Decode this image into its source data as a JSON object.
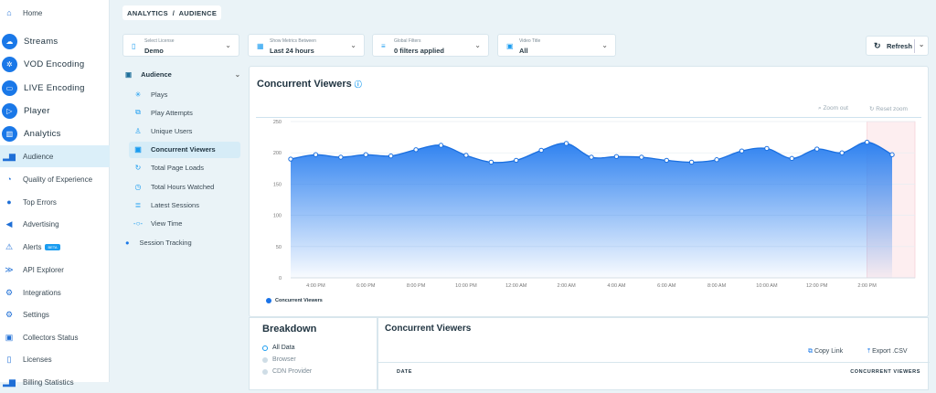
{
  "sidebar": {
    "items": [
      {
        "label": "Home",
        "icon": "home-icon",
        "big": false
      },
      {
        "label": "Streams",
        "icon": "cloud-icon",
        "big": true
      },
      {
        "label": "VOD Encoding",
        "icon": "network-icon",
        "big": true
      },
      {
        "label": "LIVE Encoding",
        "icon": "live-icon",
        "big": true
      },
      {
        "label": "Player",
        "icon": "play-icon",
        "big": true
      },
      {
        "label": "Analytics",
        "icon": "analytics-icon",
        "big": true
      },
      {
        "label": "Audience",
        "icon": "bar-chart-icon",
        "active": true
      },
      {
        "label": "Quality of Experience",
        "icon": "gauge-icon"
      },
      {
        "label": "Top Errors",
        "icon": "error-icon"
      },
      {
        "label": "Advertising",
        "icon": "megaphone-icon"
      },
      {
        "label": "Alerts",
        "icon": "alarm-icon",
        "badge": "BETA"
      },
      {
        "label": "API Explorer",
        "icon": "code-icon"
      },
      {
        "label": "Integrations",
        "icon": "integrations-icon"
      },
      {
        "label": "Settings",
        "icon": "gear-icon"
      },
      {
        "label": "Collectors Status",
        "icon": "collector-icon"
      },
      {
        "label": "Licenses",
        "icon": "license-icon"
      },
      {
        "label": "Billing Statistics",
        "icon": "billing-icon"
      }
    ]
  },
  "breadcrumb": "ANALYTICS  /  AUDIENCE",
  "filters": {
    "license": {
      "label": "Select License",
      "value": "Demo"
    },
    "time": {
      "label": "Show Metrics Between",
      "value": "Last 24 hours"
    },
    "global": {
      "label": "Global Filters",
      "value": "0 filters applied"
    },
    "video": {
      "label": "Video Title",
      "value": "All"
    },
    "refresh": "Refresh"
  },
  "subnav": {
    "group": "Audience",
    "items": [
      "Plays",
      "Play Attempts",
      "Unique Users",
      "Concurrent Viewers",
      "Total Page Loads",
      "Total Hours Watched",
      "Latest Sessions",
      "View Time"
    ],
    "active": "Concurrent Viewers",
    "session": "Session Tracking"
  },
  "chart_card": {
    "title": "Concurrent Viewers",
    "zoom_out": "Zoom out",
    "reset_zoom": "Reset zoom"
  },
  "chart_data": {
    "type": "area",
    "x": [
      "3:00 PM",
      "4:00 PM",
      "5:00 PM",
      "6:00 PM",
      "7:00 PM",
      "8:00 PM",
      "9:00 PM",
      "10:00 PM",
      "11:00 PM",
      "12:00 AM",
      "1:00 AM",
      "2:00 AM",
      "3:00 AM",
      "4:00 AM",
      "5:00 AM",
      "6:00 AM",
      "7:00 AM",
      "8:00 AM",
      "9:00 AM",
      "10:00 AM",
      "11:00 AM",
      "12:00 PM",
      "1:00 PM",
      "2:00 PM",
      "3:00 PM"
    ],
    "series": [
      {
        "name": "Concurrent Viewers",
        "values": [
          190,
          197,
          193,
          197,
          195,
          205,
          212,
          196,
          185,
          188,
          204,
          215,
          193,
          194,
          193,
          188,
          185,
          189,
          203,
          207,
          191,
          206,
          200,
          217,
          197
        ],
        "color": "#1a73e8"
      }
    ],
    "xticks": [
      "4:00 PM",
      "6:00 PM",
      "8:00 PM",
      "10:00 PM",
      "12:00 AM",
      "2:00 AM",
      "4:00 AM",
      "6:00 AM",
      "8:00 AM",
      "10:00 AM",
      "12:00 PM",
      "2:00 PM"
    ],
    "yticks": [
      0,
      50,
      100,
      150,
      200,
      250
    ],
    "ylim": [
      0,
      250
    ],
    "grid": true,
    "legend": "bottom-left",
    "highlight_from": "2:00 PM"
  },
  "breakdown": {
    "title": "Breakdown",
    "options": [
      "All Data",
      "Browser",
      "CDN Provider"
    ],
    "selected": "All Data"
  },
  "table": {
    "title": "Concurrent Viewers",
    "copy": "Copy Link",
    "export": "Export .CSV",
    "columns": [
      "DATE",
      "CONCURRENT VIEWERS"
    ]
  }
}
